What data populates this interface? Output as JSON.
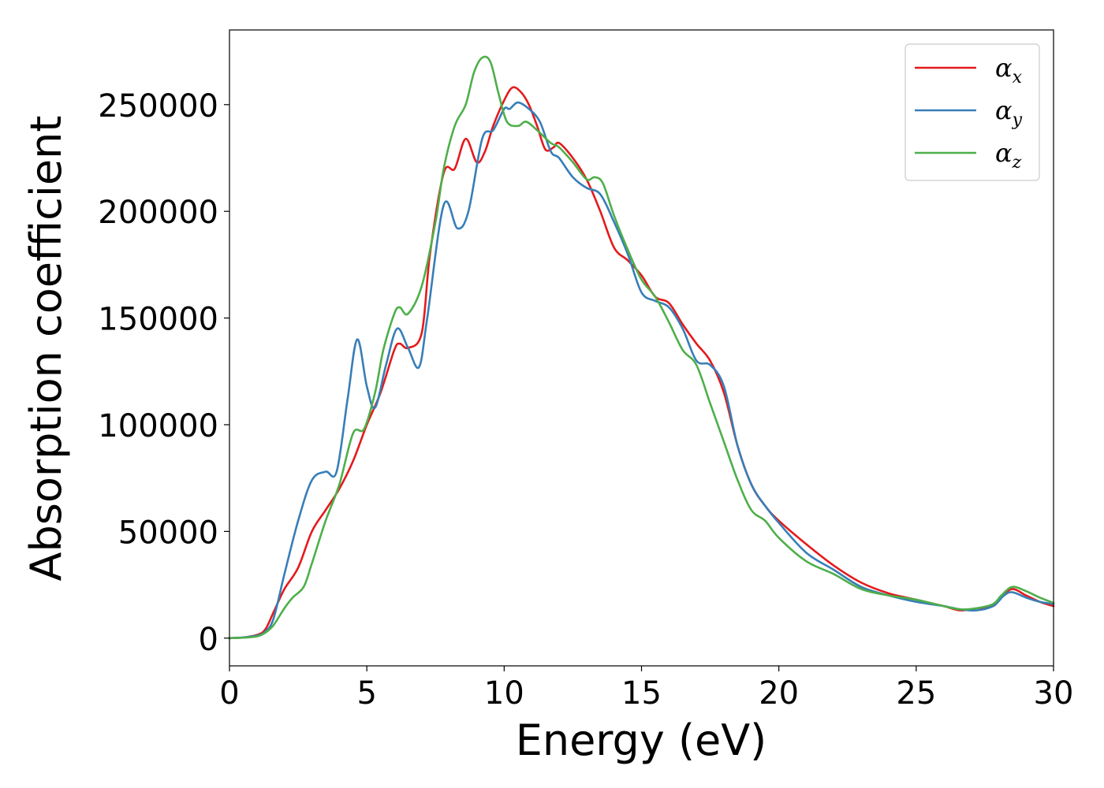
{
  "chart_data": {
    "type": "line",
    "xlabel": "Energy (eV)",
    "ylabel": "Absorption coefficient",
    "xlim": [
      0,
      30
    ],
    "ylim": [
      -13000,
      285000
    ],
    "xticks": [
      0,
      5,
      10,
      15,
      20,
      25,
      30
    ],
    "yticks": [
      0,
      50000,
      100000,
      150000,
      200000,
      250000
    ],
    "grid": false,
    "legend_position": "top-right",
    "series": [
      {
        "name": "α_x",
        "label_base": "α",
        "label_sub": "x",
        "color": "#e41a1c",
        "x": [
          0,
          0.5,
          1.0,
          1.3,
          1.6,
          2.0,
          2.5,
          3.0,
          3.5,
          4.0,
          4.5,
          5.0,
          5.5,
          6.0,
          6.2,
          6.5,
          7.0,
          7.3,
          7.8,
          8.2,
          8.6,
          9.0,
          9.3,
          9.6,
          10.0,
          10.3,
          10.6,
          10.9,
          11.2,
          11.5,
          11.8,
          12.0,
          12.5,
          13.0,
          13.5,
          14.0,
          14.5,
          15.0,
          15.5,
          16.0,
          16.5,
          17.0,
          17.5,
          18.0,
          18.5,
          19.0,
          19.5,
          20.0,
          21.0,
          22.0,
          23.0,
          24.0,
          25.0,
          26.0,
          26.6,
          27.2,
          27.8,
          28.1,
          28.5,
          29.0,
          29.5,
          30.0
        ],
        "y": [
          0,
          300,
          1500,
          4000,
          12000,
          23000,
          33000,
          50000,
          60000,
          70000,
          83000,
          100000,
          115000,
          135000,
          138000,
          136000,
          143000,
          180000,
          218000,
          220000,
          234000,
          223000,
          228000,
          240000,
          252000,
          258000,
          256000,
          250000,
          240000,
          229000,
          230000,
          232000,
          225000,
          215000,
          200000,
          183000,
          177000,
          170000,
          160000,
          157000,
          147000,
          138000,
          130000,
          115000,
          90000,
          72000,
          62000,
          55000,
          44000,
          34000,
          26000,
          21000,
          18000,
          15000,
          13000,
          14000,
          15000,
          19000,
          23000,
          20000,
          17000,
          15000
        ]
      },
      {
        "name": "α_y",
        "label_base": "α",
        "label_sub": "y",
        "color": "#377eb8",
        "x": [
          0,
          0.5,
          1.0,
          1.3,
          1.6,
          2.0,
          2.5,
          3.0,
          3.5,
          3.9,
          4.3,
          4.65,
          5.0,
          5.3,
          5.7,
          6.1,
          6.5,
          6.9,
          7.2,
          7.8,
          8.3,
          8.7,
          9.2,
          9.6,
          10.0,
          10.2,
          10.5,
          10.9,
          11.3,
          11.7,
          12.0,
          12.5,
          13.0,
          13.5,
          14.0,
          14.5,
          15.0,
          15.5,
          16.0,
          16.5,
          17.0,
          17.5,
          18.0,
          18.5,
          19.0,
          19.5,
          20.0,
          21.0,
          22.0,
          23.0,
          24.0,
          25.0,
          26.0,
          26.6,
          27.2,
          27.8,
          28.2,
          28.5,
          29.0,
          29.5,
          30.0
        ],
        "y": [
          0,
          300,
          1200,
          3000,
          9000,
          30000,
          55000,
          74000,
          78000,
          78000,
          112000,
          140000,
          118000,
          108000,
          128000,
          145000,
          136000,
          127000,
          150000,
          203000,
          192000,
          200000,
          234000,
          238000,
          248000,
          248000,
          251000,
          248000,
          242000,
          228000,
          225000,
          216000,
          211000,
          208000,
          195000,
          180000,
          162000,
          158000,
          155000,
          145000,
          130000,
          128000,
          118000,
          90000,
          72000,
          62000,
          54000,
          40000,
          32000,
          24000,
          20000,
          17000,
          15000,
          13500,
          13000,
          15000,
          20000,
          21500,
          19000,
          17000,
          16000
        ]
      },
      {
        "name": "α_z",
        "label_base": "α",
        "label_sub": "z",
        "color": "#4daf4a",
        "x": [
          0,
          0.5,
          1.0,
          1.3,
          1.6,
          2.0,
          2.3,
          2.7,
          3.0,
          3.5,
          4.0,
          4.5,
          4.9,
          5.3,
          5.6,
          6.0,
          6.2,
          6.5,
          7.0,
          7.5,
          7.8,
          8.2,
          8.6,
          8.9,
          9.2,
          9.5,
          9.8,
          10.1,
          10.5,
          10.8,
          11.2,
          11.7,
          12.0,
          12.5,
          13.0,
          13.3,
          13.6,
          14.0,
          14.5,
          15.0,
          15.5,
          16.0,
          16.5,
          17.0,
          17.5,
          18.0,
          18.5,
          19.0,
          19.5,
          20.0,
          21.0,
          22.0,
          23.0,
          24.0,
          25.0,
          26.0,
          26.6,
          27.2,
          27.8,
          28.1,
          28.5,
          29.0,
          29.5,
          30.0
        ],
        "y": [
          0,
          200,
          800,
          2500,
          6000,
          14000,
          19000,
          24000,
          35000,
          55000,
          72000,
          96000,
          98000,
          115000,
          135000,
          152000,
          155000,
          152000,
          165000,
          195000,
          220000,
          240000,
          250000,
          265000,
          272000,
          270000,
          255000,
          242000,
          240000,
          242000,
          238000,
          232000,
          230000,
          223000,
          215000,
          216000,
          213000,
          198000,
          182000,
          168000,
          160000,
          148000,
          135000,
          128000,
          110000,
          92000,
          74000,
          60000,
          55000,
          47000,
          36000,
          30000,
          23000,
          20000,
          18000,
          15000,
          13500,
          14000,
          16000,
          20000,
          24000,
          22000,
          19000,
          16500
        ]
      }
    ]
  }
}
